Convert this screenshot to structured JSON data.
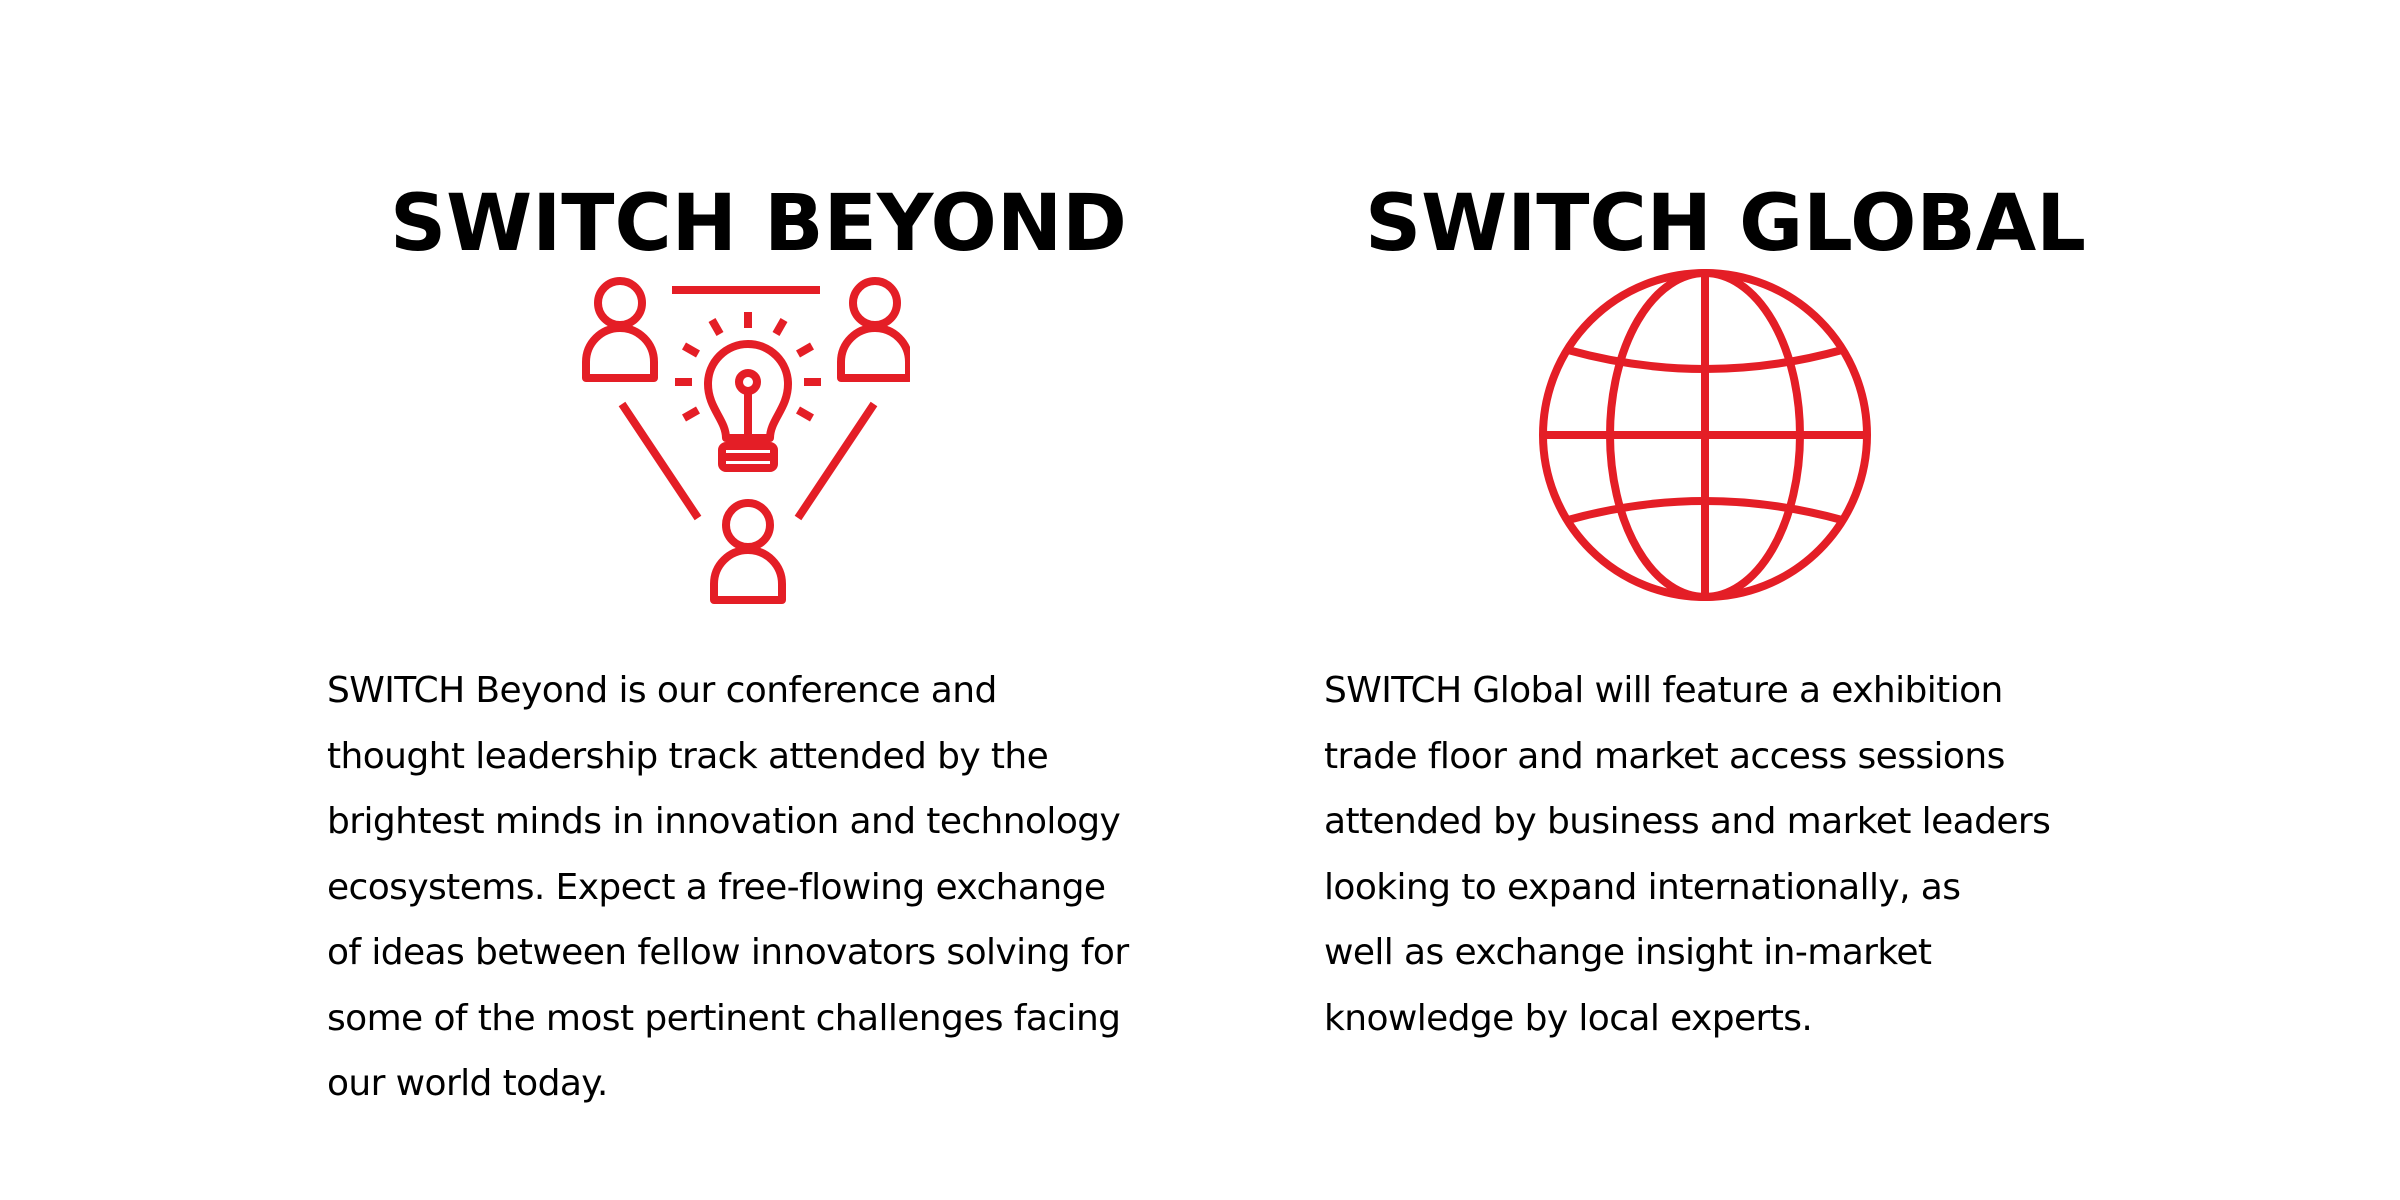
{
  "colors": {
    "accent": "#e41e26",
    "text": "#000000",
    "background": "#ffffff"
  },
  "beyond": {
    "title": "SWITCH BEYOND",
    "icon": "people-idea-lightbulb-icon",
    "description": "SWITCH Beyond is our conference and\nthought leadership track attended by the\nbrightest minds in innovation and technology\necosystems. Expect a free-flowing exchange\nof ideas between fellow innovators solving for\nsome of the most pertinent challenges facing\nour world today."
  },
  "global": {
    "title": "SWITCH GLOBAL",
    "icon": "globe-icon",
    "description": "SWITCH Global will feature a exhibition\ntrade floor and market access sessions\nattended by business and market leaders\nlooking to expand internationally, as\nwell as exchange insight in-market\nknowledge by local experts."
  }
}
